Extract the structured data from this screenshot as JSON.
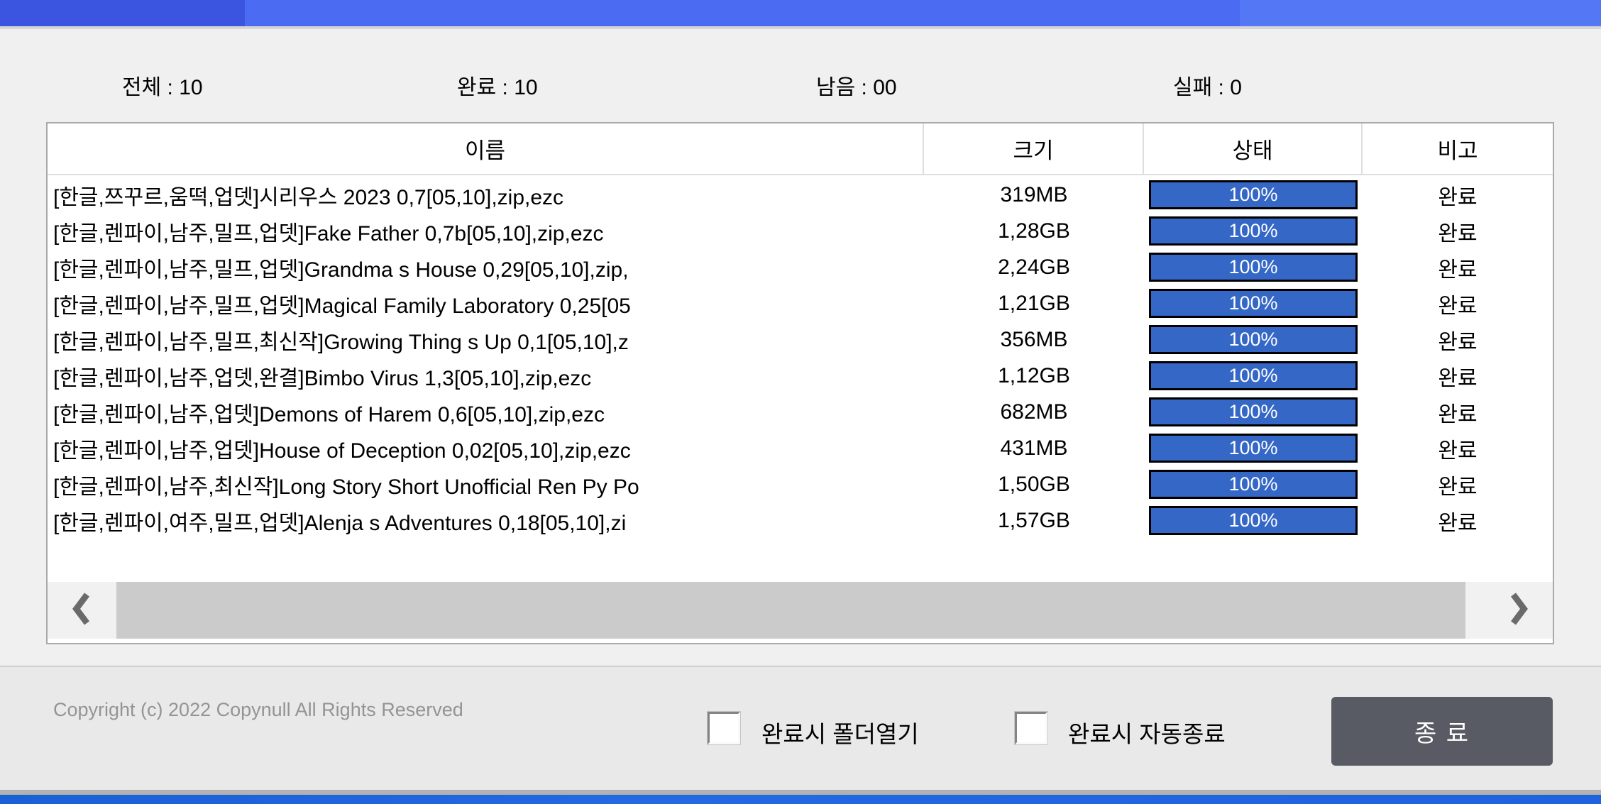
{
  "titlebar": {
    "colors": [
      "#3c55e1",
      "#4a6bf2",
      "#5377f5"
    ]
  },
  "stats": {
    "items": [
      {
        "id": "total",
        "text": "전체 : 10"
      },
      {
        "id": "complete",
        "text": "완료 : 10"
      },
      {
        "id": "remaining",
        "text": "남음 : 00"
      },
      {
        "id": "failed",
        "text": "실패 : 0"
      }
    ]
  },
  "table": {
    "headers": {
      "name": "이름",
      "size": "크기",
      "status": "상태",
      "remark": "비고"
    },
    "progress_color": "#3467c6",
    "rows": [
      {
        "name": "[한글,쯔꾸르,움떡,업뎃]시리우스 2023 0,7[05,10],zip,ezc",
        "size": "319MB",
        "progress": "100%",
        "remark": "완료"
      },
      {
        "name": "[한글,렌파이,남주,밀프,업뎃]Fake Father 0,7b[05,10],zip,ezc",
        "size": "1,28GB",
        "progress": "100%",
        "remark": "완료"
      },
      {
        "name": "[한글,렌파이,남주,밀프,업뎃]Grandma s House 0,29[05,10],zip,",
        "size": "2,24GB",
        "progress": "100%",
        "remark": "완료"
      },
      {
        "name": "[한글,렌파이,남주,밀프,업뎃]Magical Family Laboratory 0,25[05",
        "size": "1,21GB",
        "progress": "100%",
        "remark": "완료"
      },
      {
        "name": "[한글,렌파이,남주,밀프,최신작]Growing Thing s Up 0,1[05,10],z",
        "size": "356MB",
        "progress": "100%",
        "remark": "완료"
      },
      {
        "name": "[한글,렌파이,남주,업뎃,완결]Bimbo Virus 1,3[05,10],zip,ezc",
        "size": "1,12GB",
        "progress": "100%",
        "remark": "완료"
      },
      {
        "name": "[한글,렌파이,남주,업뎃]Demons of Harem 0,6[05,10],zip,ezc",
        "size": "682MB",
        "progress": "100%",
        "remark": "완료"
      },
      {
        "name": "[한글,렌파이,남주,업뎃]House of Deception 0,02[05,10],zip,ezc",
        "size": "431MB",
        "progress": "100%",
        "remark": "완료"
      },
      {
        "name": "[한글,렌파이,남주,최신작]Long Story Short Unofficial Ren Py Po",
        "size": "1,50GB",
        "progress": "100%",
        "remark": "완료"
      },
      {
        "name": "[한글,렌파이,여주,밀프,업뎃]Alenja s Adventures 0,18[05,10],zi",
        "size": "1,57GB",
        "progress": "100%",
        "remark": "완료"
      }
    ]
  },
  "scrollbar": {
    "left_icon": "chevron-left",
    "right_icon": "chevron-right"
  },
  "footer": {
    "copyright": "Copyright (c) 2022 Copynull All Rights Reserved",
    "checkboxes": [
      {
        "label": "완료시 폴더열기",
        "checked": false
      },
      {
        "label": "완료시 자동종료",
        "checked": false
      }
    ],
    "exit_button": "종 료",
    "exit_button_color": "#595b64",
    "bottom_bar_color": "#1d63dd"
  }
}
